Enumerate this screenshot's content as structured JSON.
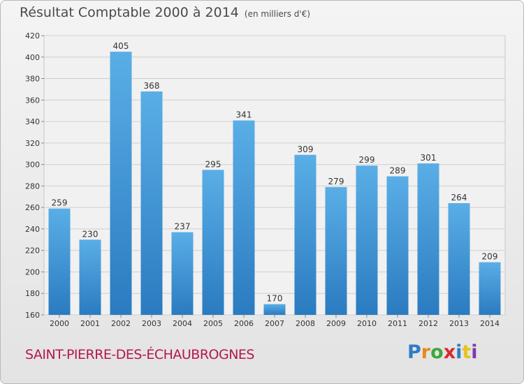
{
  "title": "Résultat Comptable 2000 à 2014",
  "unit": "(en milliers d'€)",
  "commune": "SAINT-PIERRE-DES-ÉCHAUBROGNES",
  "logo": {
    "text": "Proxiti",
    "letters": [
      "P",
      "r",
      "o",
      "x",
      "i",
      "t",
      "i"
    ],
    "colors": [
      "#2f7cc4",
      "#e88a1a",
      "#3aa83a",
      "#d92a2a",
      "#2f7cc4",
      "#e8c21a",
      "#7a3ab0"
    ]
  },
  "colors": {
    "bar_light": "#5aaee6",
    "bar_dark": "#2a7bc0",
    "grid": "#cfcfcf",
    "commune": "#b5174d"
  },
  "chart_data": {
    "type": "bar",
    "title": "Résultat Comptable 2000 à 2014",
    "subtitle": "(en milliers d'€)",
    "xlabel": "",
    "ylabel": "",
    "categories": [
      "2000",
      "2001",
      "2002",
      "2003",
      "2004",
      "2005",
      "2006",
      "2007",
      "2008",
      "2009",
      "2010",
      "2011",
      "2012",
      "2013",
      "2014"
    ],
    "values": [
      259,
      230,
      405,
      368,
      237,
      295,
      341,
      170,
      309,
      279,
      299,
      289,
      301,
      264,
      209
    ],
    "ylim": [
      160,
      420
    ],
    "yticks": [
      160,
      180,
      200,
      220,
      240,
      260,
      280,
      300,
      320,
      340,
      360,
      380,
      400,
      420
    ],
    "grid": true,
    "data_labels": true
  }
}
